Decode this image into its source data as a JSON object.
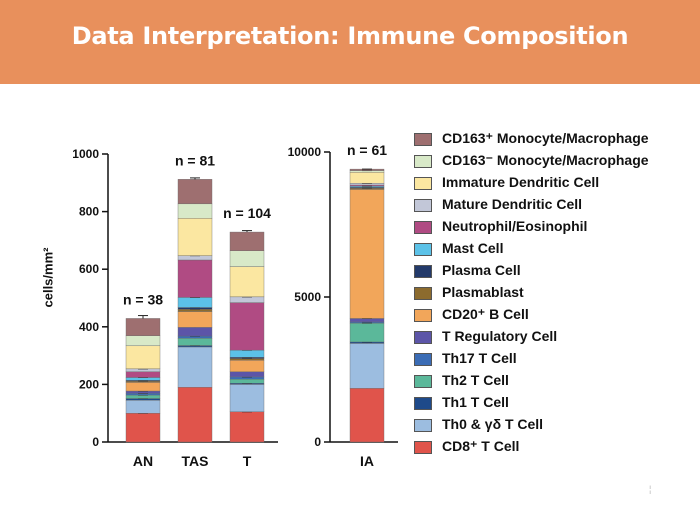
{
  "header": {
    "title": "Data Interpretation: Immune Composition"
  },
  "page_mark": "¦",
  "chart_data": [
    {
      "type": "bar",
      "stacked": true,
      "categories": [
        "AN",
        "TAS",
        "T"
      ],
      "counts": [
        "n = 38",
        "n = 81",
        "n = 104"
      ],
      "ylabel": "cells/mm²",
      "ylim": [
        0,
        1000
      ],
      "yticks": [
        0,
        200,
        400,
        600,
        800,
        1000
      ],
      "series": [
        {
          "name": "CD8+ T Cell",
          "color": "#e0544b",
          "values": [
            100,
            190,
            105
          ],
          "err": [
            0,
            15,
            0
          ]
        },
        {
          "name": "Th0 & γδ T Cell",
          "color": "#9cbde0",
          "values": [
            45,
            140,
            95
          ],
          "err": [
            10,
            10,
            8
          ]
        },
        {
          "name": "Th1 T Cell",
          "color": "#1e4a8a",
          "values": [
            6,
            5,
            4
          ],
          "err": [
            0,
            0,
            0
          ]
        },
        {
          "name": "Th2 T Cell",
          "color": "#5bb89a",
          "values": [
            12,
            25,
            14
          ],
          "err": [
            0,
            6,
            4
          ]
        },
        {
          "name": "Th17 T Cell",
          "color": "#3b6cb5",
          "values": [
            6,
            8,
            8
          ],
          "err": [
            0,
            0,
            0
          ]
        },
        {
          "name": "T Regulatory Cell",
          "color": "#5c55a8",
          "values": [
            8,
            30,
            18
          ],
          "err": [
            0,
            5,
            4
          ]
        },
        {
          "name": "CD20+ B Cell",
          "color": "#f2a65a",
          "values": [
            30,
            55,
            40
          ],
          "err": [
            5,
            8,
            6
          ]
        },
        {
          "name": "Plasmablast",
          "color": "#8c6b2e",
          "values": [
            4,
            8,
            6
          ],
          "err": [
            0,
            0,
            0
          ]
        },
        {
          "name": "Plasma Cell",
          "color": "#233a6a",
          "values": [
            3,
            6,
            4
          ],
          "err": [
            0,
            0,
            0
          ]
        },
        {
          "name": "Mast Cell",
          "color": "#5cc2e8",
          "values": [
            10,
            35,
            25
          ],
          "err": [
            0,
            0,
            0
          ]
        },
        {
          "name": "Neutrophil/Eosinophil",
          "color": "#b04b83",
          "values": [
            20,
            130,
            165
          ],
          "err": [
            5,
            5,
            5
          ]
        },
        {
          "name": "Mature Dendritic Cell",
          "color": "#c2c7d8",
          "values": [
            10,
            15,
            20
          ],
          "err": [
            0,
            0,
            0
          ]
        },
        {
          "name": "Immature Dendritic Cell",
          "color": "#fbe7a1",
          "values": [
            80,
            130,
            105
          ],
          "err": [
            10,
            18,
            15
          ]
        },
        {
          "name": "CD163- Monocyte/Macrophage",
          "color": "#d8e9c8",
          "values": [
            35,
            50,
            55
          ],
          "err": [
            8,
            10,
            10
          ]
        },
        {
          "name": "CD163+ Monocyte/Macrophage",
          "color": "#9e6f70",
          "values": [
            60,
            85,
            65
          ],
          "err": [
            10,
            5,
            5
          ]
        }
      ]
    },
    {
      "type": "bar",
      "stacked": true,
      "categories": [
        "IA"
      ],
      "counts": [
        "n = 61"
      ],
      "ylim": [
        0,
        10000
      ],
      "yticks": [
        0,
        5000,
        10000
      ],
      "series": [
        {
          "name": "CD8+ T Cell",
          "values": [
            1850
          ],
          "err": [
            150
          ]
        },
        {
          "name": "Th0 & γδ T Cell",
          "values": [
            1550
          ],
          "err": [
            80
          ]
        },
        {
          "name": "Th1 T Cell",
          "values": [
            50
          ],
          "err": [
            0
          ]
        },
        {
          "name": "Th2 T Cell",
          "values": [
            650
          ],
          "err": [
            0
          ]
        },
        {
          "name": "Th17 T Cell",
          "values": [
            40
          ],
          "err": [
            0
          ]
        },
        {
          "name": "T Regulatory Cell",
          "values": [
            120
          ],
          "err": [
            0
          ]
        },
        {
          "name": "CD20+ B Cell",
          "values": [
            4450
          ],
          "err": [
            60
          ]
        },
        {
          "name": "Plasmablast",
          "values": [
            40
          ],
          "err": [
            0
          ]
        },
        {
          "name": "Plasma Cell",
          "values": [
            30
          ],
          "err": [
            0
          ]
        },
        {
          "name": "Mast Cell",
          "values": [
            40
          ],
          "err": [
            0
          ]
        },
        {
          "name": "Neutrophil/Eosinophil",
          "values": [
            40
          ],
          "err": [
            0
          ]
        },
        {
          "name": "Mature Dendritic Cell",
          "values": [
            60
          ],
          "err": [
            0
          ]
        },
        {
          "name": "Immature Dendritic Cell",
          "values": [
            380
          ],
          "err": [
            60
          ]
        },
        {
          "name": "CD163- Monocyte/Macrophage",
          "values": [
            60
          ],
          "err": [
            0
          ]
        },
        {
          "name": "CD163+ Monocyte/Macrophage",
          "values": [
            50
          ],
          "err": [
            0
          ]
        }
      ]
    }
  ],
  "legend": [
    {
      "label": "CD163⁺ Monocyte/Macrophage",
      "color": "#9e6f70"
    },
    {
      "label": "CD163⁻ Monocyte/Macrophage",
      "color": "#d8e9c8"
    },
    {
      "label": "Immature Dendritic Cell",
      "color": "#fbe7a1"
    },
    {
      "label": "Mature Dendritic Cell",
      "color": "#c2c7d8"
    },
    {
      "label": "Neutrophil/Eosinophil",
      "color": "#b04b83"
    },
    {
      "label": "Mast Cell",
      "color": "#5cc2e8"
    },
    {
      "label": "Plasma Cell",
      "color": "#233a6a"
    },
    {
      "label": "Plasmablast",
      "color": "#8c6b2e"
    },
    {
      "label": "CD20⁺ B Cell",
      "color": "#f2a65a"
    },
    {
      "label": "T Regulatory Cell",
      "color": "#5c55a8"
    },
    {
      "label": "Th17 T Cell",
      "color": "#3b6cb5"
    },
    {
      "label": "Th2 T Cell",
      "color": "#5bb89a"
    },
    {
      "label": "Th1 T Cell",
      "color": "#1e4a8a"
    },
    {
      "label": "Th0 & γδ T Cell",
      "color": "#9cbde0"
    },
    {
      "label": "CD8⁺ T Cell",
      "color": "#e0544b"
    }
  ]
}
